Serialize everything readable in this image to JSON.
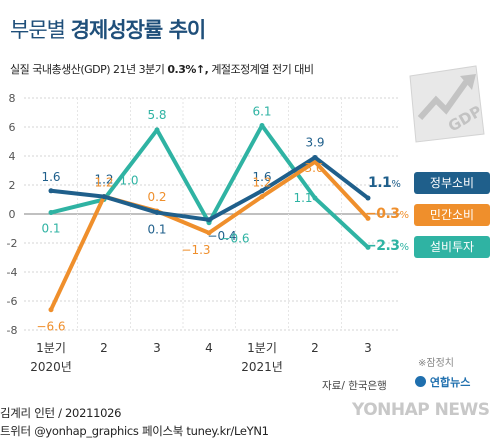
{
  "title_light": "부문별",
  "title_bold": "경제성장률 추이",
  "subtitle_pre": "실질 국내총생산(GDP) 21년 3분기",
  "subtitle_value": "0.3%↑,",
  "subtitle_post": "계절조정계열 전기 대비",
  "credit": "※잠정치",
  "source": "자료/ 한국은행",
  "logo_text": "연합뉴스",
  "watermark": "YONHAP NEWS",
  "byline": "김계리 인턴 / 20211026",
  "social": "트위터 @yonhap_graphics  페이스북 tuney.kr/LeYN1",
  "icon_text": "GDP",
  "end_labels": [
    {
      "value": "1.1",
      "unit": "%"
    },
    {
      "value": "−0.3",
      "unit": "%"
    },
    {
      "value": "−2.3",
      "unit": "%"
    }
  ],
  "chart_data": {
    "type": "line",
    "categories": [
      "1분기",
      "2",
      "3",
      "4",
      "1분기",
      "2",
      "3"
    ],
    "year_labels": [
      "2020년",
      "2021년"
    ],
    "ylim": [
      -8,
      8
    ],
    "yticks": [
      8,
      6,
      4,
      2,
      0,
      -2,
      -4,
      -6,
      -8
    ],
    "grid": true,
    "legend": "right",
    "series": [
      {
        "name": "정부소비",
        "color": "#1f5f8b",
        "values": [
          1.6,
          1.2,
          0.1,
          -0.4,
          1.6,
          3.9,
          1.1
        ],
        "labels": [
          "1.6",
          "1.2",
          "0.1",
          "−0.4",
          "1.6",
          "3.9",
          ""
        ]
      },
      {
        "name": "민간소비",
        "color": "#ef8f2c",
        "values": [
          -6.6,
          1.2,
          0.2,
          -1.3,
          1.2,
          3.6,
          -0.3
        ],
        "labels": [
          "−6.6",
          "1.2",
          "0.2",
          "−1.3",
          "1.2",
          "3.6",
          ""
        ]
      },
      {
        "name": "설비투자",
        "color": "#2fb3a3",
        "values": [
          0.1,
          1.0,
          5.8,
          -0.6,
          6.1,
          1.1,
          -2.3
        ],
        "labels": [
          "0.1",
          "1.0",
          "5.8",
          "−0.6",
          "6.1",
          "1.1",
          ""
        ]
      }
    ]
  }
}
